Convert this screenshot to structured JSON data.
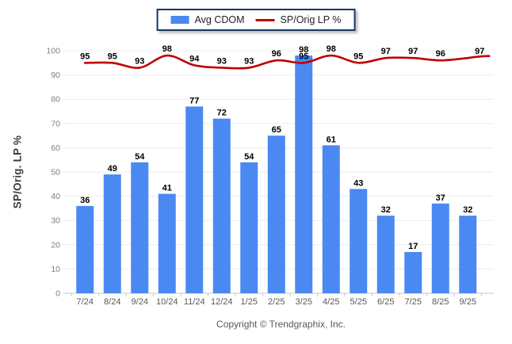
{
  "chart_data": {
    "type": "combo",
    "categories": [
      "7/24",
      "8/24",
      "9/24",
      "10/24",
      "11/24",
      "12/24",
      "1/25",
      "2/25",
      "3/25",
      "4/25",
      "5/25",
      "6/25",
      "7/25",
      "8/25",
      "9/25"
    ],
    "series": [
      {
        "name": "Avg CDOM",
        "type": "bar",
        "color": "#4a89f2",
        "values": [
          36,
          49,
          54,
          41,
          77,
          72,
          54,
          65,
          98,
          61,
          43,
          32,
          17,
          37,
          32
        ]
      },
      {
        "name": "SP/Orig LP %",
        "type": "line",
        "color": "#c00000",
        "values": [
          95,
          95,
          93,
          98,
          94,
          93,
          93,
          96,
          95,
          98,
          95,
          97,
          97,
          96,
          97
        ]
      }
    ],
    "ylabel": "SP/Orig. LP %",
    "ylim": [
      0,
      100
    ],
    "ytick_step": 10,
    "grid": true,
    "legend_position": "top",
    "value_labels": true
  },
  "footer": {
    "copyright": "Copyright © Trendgraphix, Inc."
  },
  "colors": {
    "bar": "#4a89f2",
    "line": "#c00000",
    "legend_border": "#17375e",
    "gridline": "#ececec",
    "baseline": "#c9c9c9",
    "value_label": "#000000",
    "y_tick": "#7f7f7f",
    "x_tick": "#595959"
  }
}
